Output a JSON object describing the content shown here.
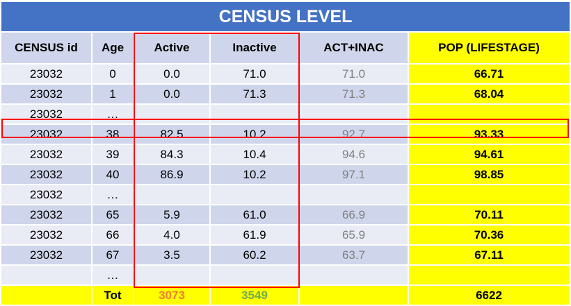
{
  "title": "CENSUS LEVEL",
  "columns": [
    "CENSUS id",
    "Age",
    "Active",
    "Inactive",
    "ACT+INAC",
    "POP (LIFESTAGE)"
  ],
  "rows": [
    {
      "id": "23032",
      "age": "0",
      "active": "0.0",
      "inactive": "71.0",
      "sum": "71.0",
      "pop": "66.71"
    },
    {
      "id": "23032",
      "age": "1",
      "active": "0.0",
      "inactive": "71.3",
      "sum": "71.3",
      "pop": "68.04"
    },
    {
      "id": "23032",
      "age": "…",
      "active": "",
      "inactive": "",
      "sum": "",
      "pop": ""
    },
    {
      "id": "23032",
      "age": "38",
      "active": "82.5",
      "inactive": "10.2",
      "sum": "92.7",
      "pop": "93.33"
    },
    {
      "id": "23032",
      "age": "39",
      "active": "84.3",
      "inactive": "10.4",
      "sum": "94.6",
      "pop": "94.61"
    },
    {
      "id": "23032",
      "age": "40",
      "active": "86.9",
      "inactive": "10.2",
      "sum": "97.1",
      "pop": "98.85"
    },
    {
      "id": "23032",
      "age": "…",
      "active": "",
      "inactive": "",
      "sum": "",
      "pop": ""
    },
    {
      "id": "23032",
      "age": "65",
      "active": "5.9",
      "inactive": "61.0",
      "sum": "66.9",
      "pop": "70.11"
    },
    {
      "id": "23032",
      "age": "66",
      "active": "4.0",
      "inactive": "61.9",
      "sum": "65.9",
      "pop": "70.36"
    },
    {
      "id": "23032",
      "age": "67",
      "active": "3.5",
      "inactive": "60.2",
      "sum": "63.7",
      "pop": "67.11"
    },
    {
      "id": "",
      "age": "…",
      "active": "",
      "inactive": "",
      "sum": "",
      "pop": ""
    }
  ],
  "total": {
    "label": "Tot",
    "active": "3073",
    "inactive": "3549",
    "sum": "",
    "pop": "6622"
  },
  "colors": {
    "header_blue": "#4472c4",
    "row_light": "#e9ebf5",
    "row_dark": "#cfd5ea",
    "highlight": "#ffff00",
    "box_red": "#ff0000",
    "tot_active": "#ed7d31",
    "tot_inactive": "#70ad47"
  }
}
